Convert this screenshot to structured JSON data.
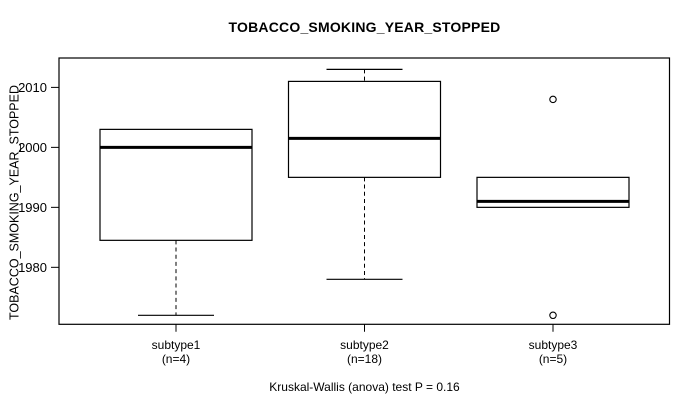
{
  "chart_data": {
    "type": "boxplot",
    "title": "TOBACCO_SMOKING_YEAR_STOPPED",
    "ylabel": "TOBACCO_SMOKING_YEAR_STOPPED",
    "footer_note": "Kruskal-Wallis (anova) test P = 0.16",
    "p_value": "0.16",
    "ylim": [
      1970.5,
      2014.9
    ],
    "yticks": [
      1980,
      1990,
      2000,
      2010
    ],
    "grid": false,
    "legend": "none",
    "categories": [
      {
        "label": "subtype1",
        "sublabel": "(n=4)"
      },
      {
        "label": "subtype2",
        "sublabel": "(n=18)"
      },
      {
        "label": "subtype3",
        "sublabel": "(n=5)"
      }
    ],
    "series": [
      {
        "name": "subtype1",
        "n": 4,
        "whisker_low": 1972,
        "q1": 1984.5,
        "median": 2000,
        "q3": 2003,
        "whisker_high": 2003,
        "outliers": []
      },
      {
        "name": "subtype2",
        "n": 18,
        "whisker_low": 1978,
        "q1": 1995,
        "median": 2001.5,
        "q3": 2011,
        "whisker_high": 2013,
        "outliers": []
      },
      {
        "name": "subtype3",
        "n": 5,
        "whisker_low": 1990,
        "q1": 1990,
        "median": 1991,
        "q3": 1995,
        "whisker_high": 1995,
        "outliers": [
          2008,
          1972
        ]
      }
    ],
    "colors": {
      "foreground": "#000000",
      "background": "#ffffff",
      "box_fill": "#ffffff"
    }
  }
}
